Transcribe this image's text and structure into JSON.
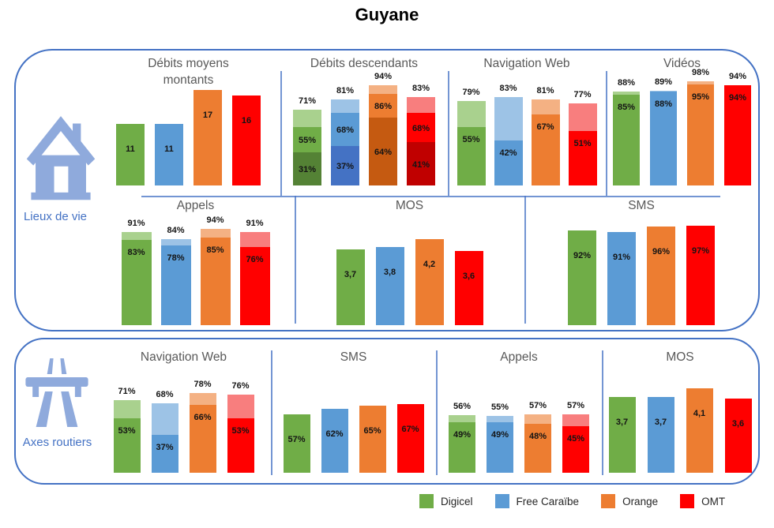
{
  "title": "Guyane",
  "operators": [
    {
      "name": "Digicel",
      "color": "#70AD47",
      "light": "#A9D18E",
      "dark": "#548235"
    },
    {
      "name": "Free Caraïbe",
      "color": "#5B9BD5",
      "light": "#9DC3E6",
      "dark": "#4472C4"
    },
    {
      "name": "Orange",
      "color": "#ED7D31",
      "light": "#F4B183",
      "dark": "#C55A11"
    },
    {
      "name": "OMT",
      "color": "#FF0000",
      "light": "#F87E7E",
      "dark": "#C00000"
    }
  ],
  "groups": [
    {
      "label": "Lieux de vie",
      "icon": "house-icon"
    },
    {
      "label": "Axes routiers",
      "icon": "highway-icon"
    }
  ],
  "chart_data": [
    {
      "id": "lv-debits-montants",
      "group": "Lieux de vie",
      "title": "Débits moyens montants",
      "type": "bar",
      "categories": [
        "Digicel",
        "Free Caraïbe",
        "Orange",
        "OMT"
      ],
      "values": [
        11,
        11,
        17,
        16
      ],
      "labels": [
        "11",
        "11",
        "17",
        "16"
      ],
      "scale_max": 19
    },
    {
      "id": "lv-debits-descendants",
      "group": "Lieux de vie",
      "title": "Débits descendants",
      "type": "stacked3",
      "categories": [
        "Digicel",
        "Free Caraïbe",
        "Orange",
        "OMT"
      ],
      "totals": [
        71,
        81,
        94,
        83
      ],
      "mids": [
        55,
        68,
        86,
        68
      ],
      "inners": [
        31,
        37,
        64,
        41
      ],
      "total_labels": [
        "71%",
        "81%",
        "94%",
        "83%"
      ],
      "mid_labels": [
        "55%",
        "68%",
        "86%",
        "68%"
      ],
      "inner_labels": [
        "31%",
        "37%",
        "64%",
        "41%"
      ],
      "scale_max": 100
    },
    {
      "id": "lv-navigation-web",
      "group": "Lieux de vie",
      "title": "Navigation Web",
      "type": "stacked2",
      "categories": [
        "Digicel",
        "Free Caraïbe",
        "Orange",
        "OMT"
      ],
      "totals": [
        79,
        83,
        81,
        77
      ],
      "inners": [
        55,
        42,
        67,
        51
      ],
      "total_labels": [
        "79%",
        "83%",
        "81%",
        "77%"
      ],
      "inner_labels": [
        "55%",
        "42%",
        "67%",
        "51%"
      ],
      "scale_max": 100
    },
    {
      "id": "lv-videos",
      "group": "Lieux de vie",
      "title": "Vidéos",
      "type": "stacked2",
      "categories": [
        "Digicel",
        "Free Caraïbe",
        "Orange",
        "OMT"
      ],
      "totals": [
        88,
        89,
        98,
        94
      ],
      "inners": [
        85,
        88,
        95,
        94
      ],
      "total_labels": [
        "88%",
        "89%",
        "98%",
        "94%"
      ],
      "inner_labels": [
        "85%",
        "88%",
        "95%",
        "94%"
      ],
      "scale_max": 100
    },
    {
      "id": "lv-appels",
      "group": "Lieux de vie",
      "title": "Appels",
      "type": "stacked2",
      "categories": [
        "Digicel",
        "Free Caraïbe",
        "Orange",
        "OMT"
      ],
      "totals": [
        91,
        84,
        94,
        91
      ],
      "inners": [
        83,
        78,
        85,
        76
      ],
      "total_labels": [
        "91%",
        "84%",
        "94%",
        "91%"
      ],
      "inner_labels": [
        "83%",
        "78%",
        "85%",
        "76%"
      ],
      "scale_max": 100
    },
    {
      "id": "lv-mos",
      "group": "Lieux de vie",
      "title": "MOS",
      "type": "bar",
      "categories": [
        "Digicel",
        "Free Caraïbe",
        "Orange",
        "OMT"
      ],
      "values": [
        3.7,
        3.8,
        4.2,
        3.6
      ],
      "labels": [
        "3,7",
        "3,8",
        "4,2",
        "3,6"
      ],
      "scale_max": 5
    },
    {
      "id": "lv-sms",
      "group": "Lieux de vie",
      "title": "SMS",
      "type": "bar",
      "categories": [
        "Digicel",
        "Free Caraïbe",
        "Orange",
        "OMT"
      ],
      "values": [
        92,
        91,
        96,
        97
      ],
      "labels": [
        "92%",
        "91%",
        "96%",
        "97%"
      ],
      "scale_max": 100
    },
    {
      "id": "ar-navigation-web",
      "group": "Axes routiers",
      "title": "Navigation Web",
      "type": "stacked2",
      "categories": [
        "Digicel",
        "Free Caraïbe",
        "Orange",
        "OMT"
      ],
      "totals": [
        71,
        68,
        78,
        76
      ],
      "inners": [
        53,
        37,
        66,
        53
      ],
      "total_labels": [
        "71%",
        "68%",
        "78%",
        "76%"
      ],
      "inner_labels": [
        "53%",
        "37%",
        "66%",
        "53%"
      ],
      "scale_max": 100
    },
    {
      "id": "ar-sms",
      "group": "Axes routiers",
      "title": "SMS",
      "type": "bar",
      "categories": [
        "Digicel",
        "Free Caraïbe",
        "Orange",
        "OMT"
      ],
      "values": [
        57,
        62,
        65,
        67
      ],
      "labels": [
        "57%",
        "62%",
        "65%",
        "67%"
      ],
      "scale_max": 100
    },
    {
      "id": "ar-appels",
      "group": "Axes routiers",
      "title": "Appels",
      "type": "stacked2",
      "categories": [
        "Digicel",
        "Free Caraïbe",
        "Orange",
        "OMT"
      ],
      "totals": [
        56,
        55,
        57,
        57
      ],
      "inners": [
        49,
        49,
        48,
        45
      ],
      "total_labels": [
        "56%",
        "55%",
        "57%",
        "57%"
      ],
      "inner_labels": [
        "49%",
        "49%",
        "48%",
        "45%"
      ],
      "scale_max": 100
    },
    {
      "id": "ar-mos",
      "group": "Axes routiers",
      "title": "MOS",
      "type": "bar",
      "categories": [
        "Digicel",
        "Free Caraïbe",
        "Orange",
        "OMT"
      ],
      "values": [
        3.7,
        3.7,
        4.1,
        3.6
      ],
      "labels": [
        "3,7",
        "3,7",
        "4,1",
        "3,6"
      ],
      "scale_max": 5
    }
  ]
}
